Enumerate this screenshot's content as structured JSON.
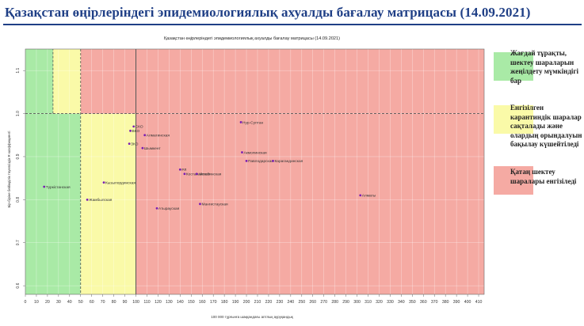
{
  "header": {
    "title": "Қазақстан өңірлеріндегі эпидемиологиялық ахуалды бағалау матрицасы  (14.09.2021)"
  },
  "legend": [
    {
      "color": "#a9eaa6",
      "label": "Жағдай тұрақты, шектеу шараларын жеңілдету мүмкіндігі бар"
    },
    {
      "color": "#fafaa8",
      "label": "Енгізілген карантиндік шаралар сақталады және олардың орындалуын бақылау күшейтіледі"
    },
    {
      "color": "#f5aaa3",
      "label": "Қатаң шектеу шаралары енгізіледі"
    }
  ],
  "chart_data": {
    "type": "scatter",
    "title": "Қазақстан өңірлеріндегі эпидемиологиялық ахуалды бағалау матрицасы (14.09.2021)",
    "xlabel": "100 000 тұрғынға шаққандағы аптлық ауруқандық",
    "ylabel": "Бір-біріне бейімділік тәуелсіздік R коэффициенті",
    "xlim": [
      0,
      415
    ],
    "ylim": [
      0.58,
      1.15
    ],
    "x_ticks": [
      0,
      10,
      20,
      30,
      40,
      50,
      60,
      70,
      80,
      90,
      100,
      110,
      120,
      130,
      140,
      150,
      160,
      170,
      180,
      190,
      200,
      210,
      220,
      230,
      240,
      250,
      260,
      270,
      280,
      290,
      300,
      310,
      320,
      330,
      340,
      350,
      360,
      370,
      380,
      390,
      400,
      410
    ],
    "y_ticks": [
      0.6,
      0.7,
      0.8,
      0.9,
      1.0,
      1.1
    ],
    "y_tick_labels": [
      "0.6",
      "0.7",
      "0.8",
      "0.9",
      "1.0",
      "1.1"
    ],
    "grid": true,
    "zones": [
      {
        "name": "green",
        "color": "#a9eaa6",
        "x": [
          0,
          50
        ],
        "y": [
          0.58,
          1.15
        ]
      },
      {
        "name": "yellow",
        "color": "#fafaa8",
        "x": [
          25,
          50
        ],
        "y": [
          1.0,
          1.15
        ]
      },
      {
        "name": "yellow",
        "color": "#fafaa8",
        "x": [
          50,
          100
        ],
        "y": [
          0.58,
          1.0
        ]
      },
      {
        "name": "red",
        "color": "#f5aaa3",
        "x": [
          50,
          415
        ],
        "y": [
          1.0,
          1.15
        ]
      },
      {
        "name": "red",
        "color": "#f5aaa3",
        "x": [
          100,
          415
        ],
        "y": [
          0.58,
          1.0
        ]
      }
    ],
    "reference_lines": {
      "x": [
        25,
        50,
        100
      ],
      "y": [
        1.0
      ]
    },
    "points": [
      {
        "label": "Түркістанская",
        "x": 17,
        "y": 0.83
      },
      {
        "label": "Жамбылская",
        "x": 56,
        "y": 0.8
      },
      {
        "label": "Кызылординская",
        "x": 71,
        "y": 0.84
      },
      {
        "label": "СКО",
        "x": 98,
        "y": 0.97
      },
      {
        "label": "ВКО",
        "x": 95,
        "y": 0.96
      },
      {
        "label": "ЗКО",
        "x": 94,
        "y": 0.93
      },
      {
        "label": "Шымкент",
        "x": 106,
        "y": 0.92
      },
      {
        "label": "Алматинская",
        "x": 108,
        "y": 0.95
      },
      {
        "label": "Атырауская",
        "x": 119,
        "y": 0.78
      },
      {
        "label": "РЛ",
        "x": 140,
        "y": 0.87
      },
      {
        "label": "Костанайская",
        "x": 144,
        "y": 0.86
      },
      {
        "label": "Актюбинская",
        "x": 155,
        "y": 0.86
      },
      {
        "label": "Мангистауская",
        "x": 158,
        "y": 0.79
      },
      {
        "label": "Нур-Султан",
        "x": 195,
        "y": 0.98
      },
      {
        "label": "Акмолинская",
        "x": 196,
        "y": 0.91
      },
      {
        "label": "Павлодарская",
        "x": 200,
        "y": 0.89
      },
      {
        "label": "Карагандинская",
        "x": 224,
        "y": 0.89
      },
      {
        "label": "Алматы",
        "x": 303,
        "y": 0.81
      }
    ]
  }
}
